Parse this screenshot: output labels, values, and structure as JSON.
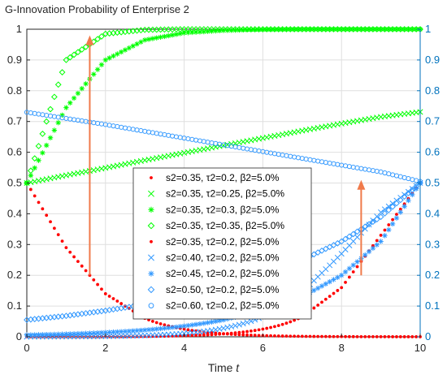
{
  "chart_data": {
    "type": "scatter",
    "title": "G-Innovation Probability of Enterprise 2",
    "xlabel": "Time",
    "xlabel_var": "t",
    "ylabel": "",
    "xlim": [
      0,
      10
    ],
    "ylim": [
      0,
      1
    ],
    "grid": true,
    "legend_position": "center",
    "x_ticks": [
      "0",
      "2",
      "4",
      "6",
      "8",
      "10"
    ],
    "y_ticks": [
      "0",
      "0.1",
      "0.2",
      "0.3",
      "0.4",
      "0.5",
      "0.6",
      "0.7",
      "0.8",
      "0.9",
      "1"
    ],
    "right_y_ticks": [
      "0",
      "0.1",
      "0.2",
      "0.3",
      "0.4",
      "0.5",
      "0.6",
      "0.7",
      "0.8",
      "0.9",
      "1"
    ],
    "colors": {
      "axis_left": "#262626",
      "axis_right": "#0072BD",
      "red": "#FF0000",
      "green": "#00FF00",
      "blue": "#3399FF",
      "arrow": "#F07A4A"
    },
    "sample_x": [
      0,
      1,
      2,
      3,
      4,
      5,
      6,
      7,
      8,
      9,
      10
    ],
    "series": [
      {
        "name": "s2=0.35, τ2=0.2, β2=5.0%",
        "marker": "dot",
        "color": "#FF0000",
        "axis": "left",
        "x": [
          0,
          1,
          2,
          3,
          4,
          5,
          6,
          7,
          8,
          9,
          10
        ],
        "y": [
          0.5,
          0.29,
          0.14,
          0.06,
          0.025,
          0.01,
          0.004,
          0.0015,
          0.0006,
          0.0002,
          0.0001
        ]
      },
      {
        "name": "s2=0.35, τ2=0.25, β2=5.0%",
        "marker": "x",
        "color": "#00FF00",
        "axis": "left",
        "x": [
          0,
          1,
          2,
          3,
          4,
          5,
          6,
          7,
          8,
          9,
          10
        ],
        "y": [
          0.5,
          0.525,
          0.549,
          0.574,
          0.598,
          0.622,
          0.646,
          0.67,
          0.693,
          0.715,
          0.731
        ]
      },
      {
        "name": "s2=0.35, τ2=0.3, β2=5.0%",
        "marker": "star",
        "color": "#00FF00",
        "axis": "left",
        "x": [
          0,
          1,
          2,
          3,
          4,
          5,
          6,
          7,
          8,
          9,
          10
        ],
        "y": [
          0.5,
          0.745,
          0.9,
          0.965,
          0.988,
          0.996,
          0.999,
          1,
          1,
          1,
          1
        ]
      },
      {
        "name": "s2=0.35, τ2=0.35, β2=5.0%",
        "marker": "diamond",
        "color": "#00FF00",
        "axis": "left",
        "x": [
          0,
          1,
          2,
          3,
          4,
          5,
          6,
          7,
          8,
          9,
          10
        ],
        "y": [
          0.5,
          0.9,
          0.985,
          0.998,
          1,
          1,
          1,
          1,
          1,
          1,
          1
        ]
      },
      {
        "name": "s2=0.35, τ2=0.2, β2=5.0%",
        "marker": "dot",
        "color": "#FF0000",
        "axis": "right",
        "x": [
          0,
          1,
          2,
          3,
          4,
          5,
          6,
          7,
          8,
          9,
          10
        ],
        "y": [
          0.0001,
          0.0002,
          0.0005,
          0.0013,
          0.0035,
          0.0095,
          0.025,
          0.065,
          0.16,
          0.33,
          0.5
        ]
      },
      {
        "name": "s2=0.40, τ2=0.2, β2=5.0%",
        "marker": "x",
        "color": "#3399FF",
        "axis": "right",
        "x": [
          0,
          1,
          2,
          3,
          4,
          5,
          6,
          7,
          8,
          9,
          10
        ],
        "y": [
          0.0003,
          0.0007,
          0.0018,
          0.0045,
          0.011,
          0.028,
          0.066,
          0.145,
          0.27,
          0.405,
          0.5
        ]
      },
      {
        "name": "s2=0.45, τ2=0.2, β2=5.0%",
        "marker": "star",
        "color": "#3399FF",
        "axis": "right",
        "x": [
          0,
          1,
          2,
          3,
          4,
          5,
          6,
          7,
          8,
          9,
          10
        ],
        "y": [
          0.006,
          0.009,
          0.014,
          0.022,
          0.035,
          0.055,
          0.085,
          0.13,
          0.2,
          0.31,
          0.5
        ]
      },
      {
        "name": "s2=0.50, τ2=0.2, β2=5.0%",
        "marker": "diamond",
        "color": "#3399FF",
        "axis": "right",
        "x": [
          0,
          1,
          2,
          3,
          4,
          5,
          6,
          7,
          8,
          9,
          10
        ],
        "y": [
          0.055,
          0.068,
          0.085,
          0.105,
          0.13,
          0.16,
          0.2,
          0.25,
          0.31,
          0.39,
          0.5
        ]
      },
      {
        "name": "s2=0.60, τ2=0.2, β2=5.0%",
        "marker": "circle",
        "color": "#3399FF",
        "axis": "right",
        "x": [
          0,
          1,
          2,
          3,
          4,
          5,
          6,
          7,
          8,
          9,
          10
        ],
        "y": [
          0.73,
          0.71,
          0.69,
          0.668,
          0.646,
          0.624,
          0.602,
          0.58,
          0.558,
          0.536,
          0.505
        ]
      }
    ],
    "annotations": [
      {
        "type": "arrow",
        "x": 1.6,
        "y_from": 0.2,
        "y_to": 0.98
      },
      {
        "type": "arrow",
        "x": 8.5,
        "y_from": 0.2,
        "y_to": 0.51
      }
    ]
  }
}
